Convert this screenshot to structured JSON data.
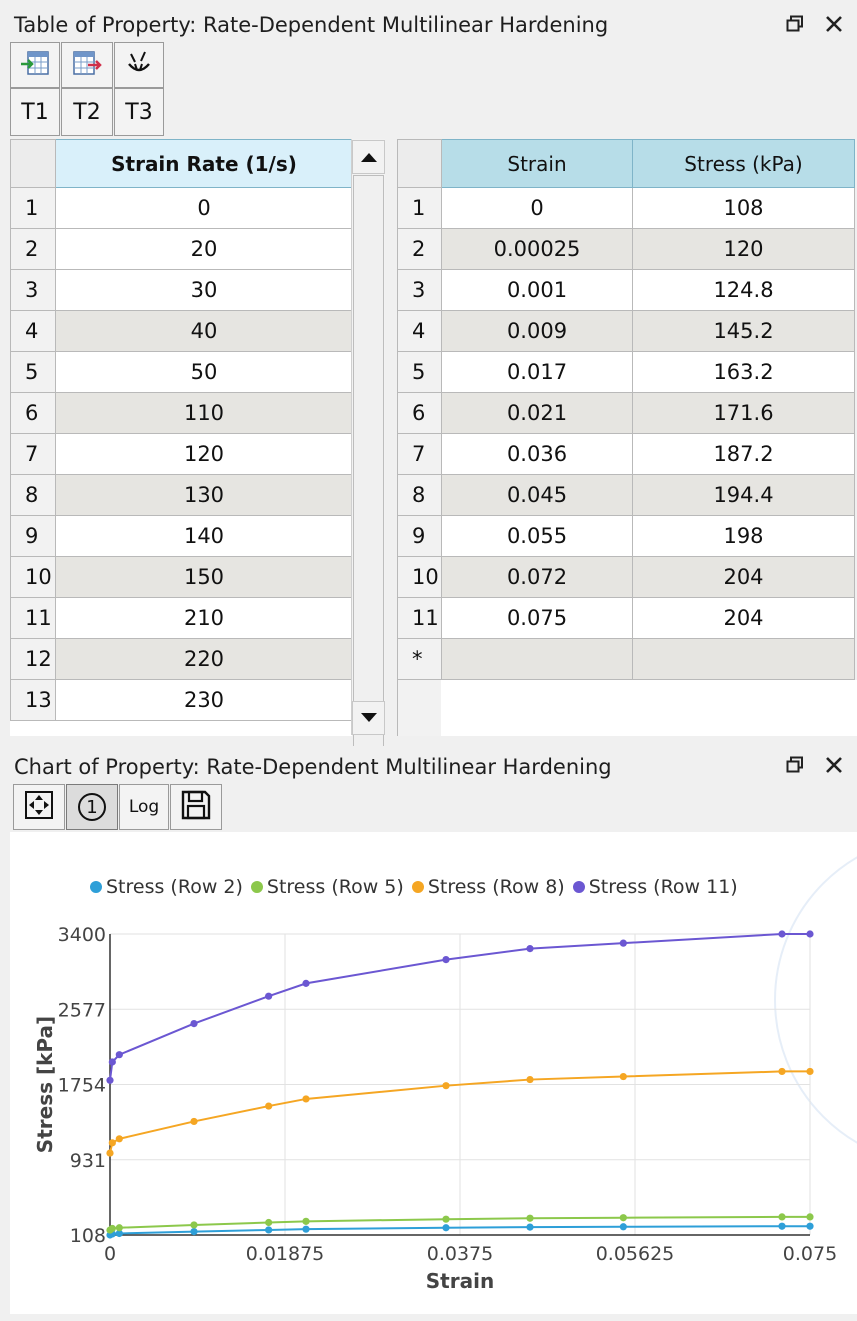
{
  "table_panel": {
    "title": "Table of Property: Rate-Dependent Multilinear Hardening",
    "toolbar": [
      "import-icon",
      "export-icon",
      "clear-icon"
    ],
    "tabs": [
      "T1",
      "T2",
      "T3"
    ]
  },
  "left_table": {
    "header": "Strain Rate (1/s)",
    "rows": [
      {
        "n": "1",
        "v": "0"
      },
      {
        "n": "2",
        "v": "20"
      },
      {
        "n": "3",
        "v": "30"
      },
      {
        "n": "4",
        "v": "40"
      },
      {
        "n": "5",
        "v": "50"
      },
      {
        "n": "6",
        "v": "110"
      },
      {
        "n": "7",
        "v": "120"
      },
      {
        "n": "8",
        "v": "130"
      },
      {
        "n": "9",
        "v": "140"
      },
      {
        "n": "10",
        "v": "150"
      },
      {
        "n": "11",
        "v": "210"
      },
      {
        "n": "12",
        "v": "220"
      },
      {
        "n": "13",
        "v": "230"
      }
    ]
  },
  "right_table": {
    "headers": [
      "Strain",
      "Stress (kPa)"
    ],
    "rows": [
      {
        "n": "1",
        "strain": "0",
        "stress": "108"
      },
      {
        "n": "2",
        "strain": "0.00025",
        "stress": "120"
      },
      {
        "n": "3",
        "strain": "0.001",
        "stress": "124.8"
      },
      {
        "n": "4",
        "strain": "0.009",
        "stress": "145.2"
      },
      {
        "n": "5",
        "strain": "0.017",
        "stress": "163.2"
      },
      {
        "n": "6",
        "strain": "0.021",
        "stress": "171.6"
      },
      {
        "n": "7",
        "strain": "0.036",
        "stress": "187.2"
      },
      {
        "n": "8",
        "strain": "0.045",
        "stress": "194.4"
      },
      {
        "n": "9",
        "strain": "0.055",
        "stress": "198"
      },
      {
        "n": "10",
        "strain": "0.072",
        "stress": "204"
      },
      {
        "n": "11",
        "strain": "0.075",
        "stress": "204"
      }
    ],
    "new_row_marker": "*"
  },
  "chart_panel": {
    "title": "Chart of Property: Rate-Dependent Multilinear Hardening",
    "toolbar": [
      "fit-icon",
      "single-icon",
      "log-label",
      "save-icon"
    ],
    "single_label": "1",
    "log_label": "Log"
  },
  "colors": {
    "row2": "#2e9fd8",
    "row5": "#8cc84b",
    "row8": "#f5a623",
    "row11": "#6b57d2"
  },
  "chart_data": {
    "type": "line",
    "xlabel": "Strain",
    "ylabel": "Stress [kPa]",
    "xlim": [
      0,
      0.075
    ],
    "ylim": [
      108,
      3400
    ],
    "xticks": [
      "0",
      "0.01875",
      "0.0375",
      "0.05625",
      "0.075"
    ],
    "yticks": [
      "108",
      "931",
      "1754",
      "2577",
      "3400"
    ],
    "grid": true,
    "legend_position": "top",
    "x": [
      0,
      0.00025,
      0.001,
      0.009,
      0.017,
      0.021,
      0.036,
      0.045,
      0.055,
      0.072,
      0.075
    ],
    "series": [
      {
        "name": "Stress (Row 2)",
        "values": [
          108,
          120,
          124.8,
          145.2,
          163.2,
          171.6,
          187.2,
          194.4,
          198,
          204,
          204
        ]
      },
      {
        "name": "Stress (Row 5)",
        "values": [
          162,
          180,
          187.2,
          217.8,
          244.8,
          257.4,
          280.8,
          291.6,
          297,
          306,
          306
        ]
      },
      {
        "name": "Stress (Row 8)",
        "values": [
          1004,
          1116,
          1160,
          1350,
          1518,
          1596,
          1741,
          1808,
          1841,
          1897,
          1897
        ]
      },
      {
        "name": "Stress (Row 11)",
        "values": [
          1800,
          2000,
          2080,
          2420,
          2720,
          2860,
          3120,
          3240,
          3300,
          3400,
          3400
        ]
      }
    ]
  }
}
